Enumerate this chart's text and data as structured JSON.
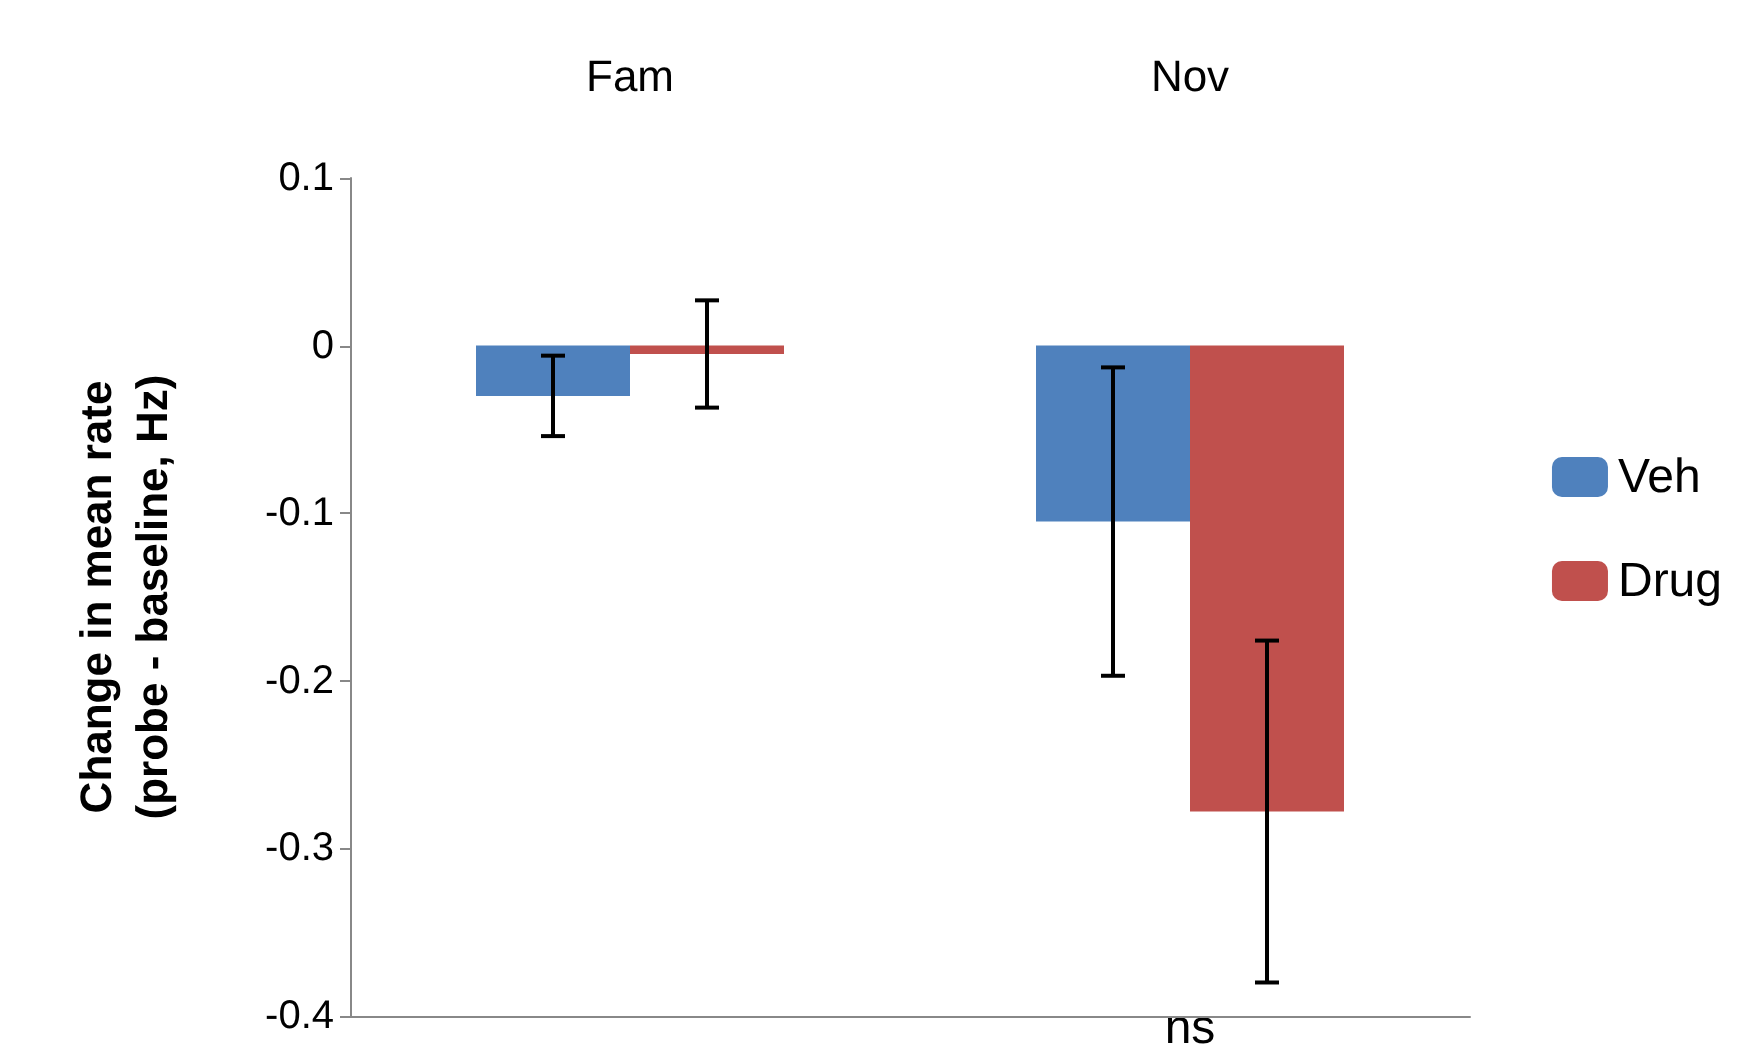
{
  "chart_data": {
    "type": "bar",
    "ylabel": "Change in mean rate\n(probe - baseline, Hz)",
    "categories": [
      "Fam",
      "Nov"
    ],
    "series": [
      {
        "name": "Veh",
        "color": "#4f81bd",
        "values": [
          -0.03,
          -0.105
        ],
        "errors": [
          0.024,
          0.092
        ]
      },
      {
        "name": "Drug",
        "color": "#c0504d",
        "values": [
          -0.005,
          -0.278
        ],
        "errors": [
          0.032,
          0.102
        ]
      }
    ],
    "ylim": [
      -0.4,
      0.1
    ],
    "yticks": [
      -0.4,
      -0.3,
      -0.2,
      -0.1,
      0,
      0.1
    ],
    "grid": false,
    "legend": "right",
    "annotations": [
      "ns"
    ]
  }
}
